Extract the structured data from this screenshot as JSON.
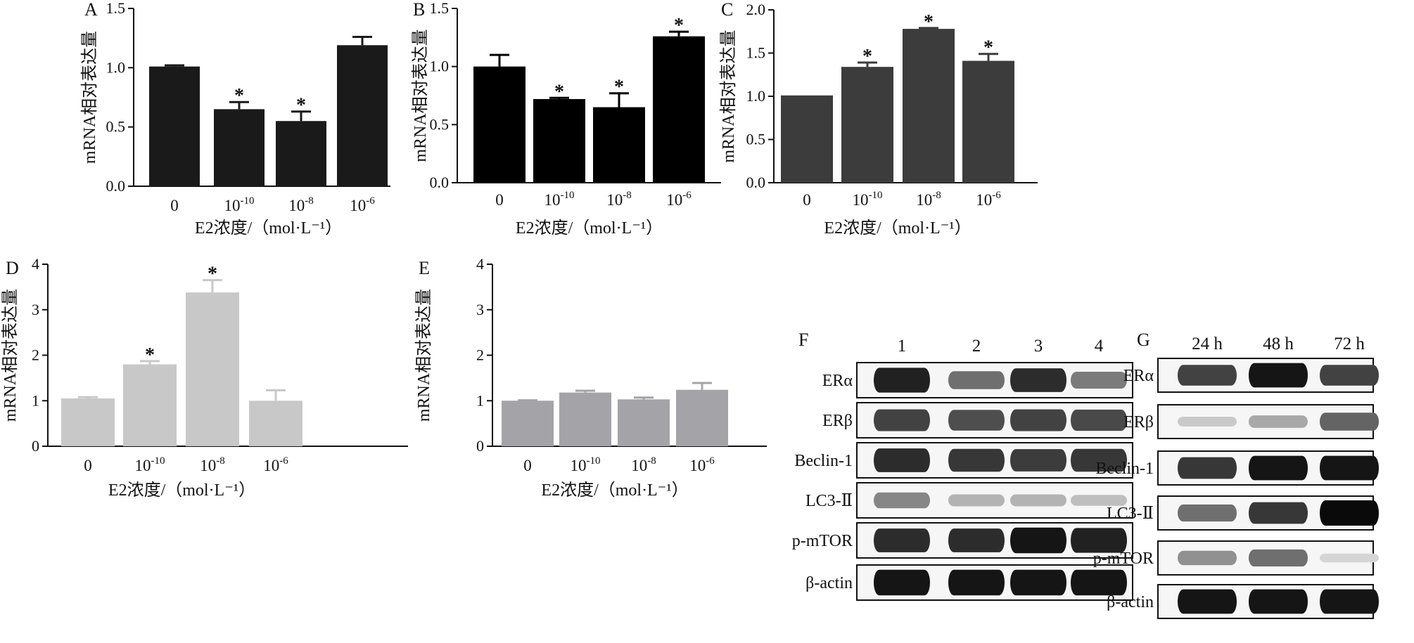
{
  "chart_data": [
    {
      "panel": "A",
      "type": "bar",
      "categories": [
        "0",
        "10^-10",
        "10^-8",
        "10^-6"
      ],
      "values": [
        1.01,
        0.65,
        0.55,
        1.19
      ],
      "errors": [
        0.01,
        0.06,
        0.08,
        0.07
      ],
      "significant": [
        false,
        true,
        true,
        false
      ],
      "yticks": [
        "0.0",
        "0.5",
        "1.0",
        "1.5"
      ],
      "ylim": [
        0,
        1.5
      ],
      "ylabel": "mRNA相对表达量",
      "xlabel": "E2浓度/（mol·L⁻¹）",
      "color": "#1a1a1a"
    },
    {
      "panel": "B",
      "type": "bar",
      "categories": [
        "0",
        "10^-10",
        "10^-8",
        "10^-6"
      ],
      "values": [
        1.0,
        0.72,
        0.65,
        1.26
      ],
      "errors": [
        0.1,
        0.01,
        0.12,
        0.04
      ],
      "significant": [
        false,
        true,
        true,
        true
      ],
      "yticks": [
        "0.0",
        "0.5",
        "1.0",
        "1.5"
      ],
      "ylim": [
        0,
        1.5
      ],
      "ylabel": "mRNA相对表达量",
      "xlabel": "E2浓度/（mol·L⁻¹）",
      "color": "#000000"
    },
    {
      "panel": "C",
      "type": "bar",
      "categories": [
        "0",
        "10^-10",
        "10^-8",
        "10^-6"
      ],
      "values": [
        1.01,
        1.34,
        1.78,
        1.41
      ],
      "errors": [
        0.0,
        0.05,
        0.01,
        0.08
      ],
      "significant": [
        false,
        true,
        true,
        true
      ],
      "yticks": [
        "0.0",
        "0.5",
        "1.0",
        "1.5",
        "2.0"
      ],
      "ylim": [
        0,
        2.0
      ],
      "ylabel": "mRNA相对表达量",
      "xlabel": "E2浓度/（mol·L⁻¹）",
      "color": "#3c3c3c"
    },
    {
      "panel": "D",
      "type": "bar",
      "categories": [
        "0",
        "10^-10",
        "10^-8",
        "10^-6"
      ],
      "values": [
        1.05,
        1.8,
        3.38,
        1.0
      ],
      "errors": [
        0.03,
        0.07,
        0.27,
        0.23
      ],
      "significant": [
        false,
        true,
        true,
        false
      ],
      "yticks": [
        "0",
        "1",
        "2",
        "3",
        "4"
      ],
      "ylim": [
        0,
        4
      ],
      "ylabel": "mRNA相对表达量",
      "xlabel": "E2浓度/（mol·L⁻¹）",
      "color": "#c8c8c8"
    },
    {
      "panel": "E",
      "type": "bar",
      "categories": [
        "0",
        "10^-10",
        "10^-8",
        "10^-6"
      ],
      "values": [
        1.0,
        1.18,
        1.03,
        1.24
      ],
      "errors": [
        0.01,
        0.04,
        0.04,
        0.15
      ],
      "significant": [
        false,
        false,
        false,
        false
      ],
      "yticks": [
        "0",
        "1",
        "2",
        "3",
        "4"
      ],
      "ylim": [
        0,
        4
      ],
      "ylabel": "mRNA相对表达量",
      "xlabel": "E2浓度/（mol·L⁻¹）",
      "color": "#a4a4a8"
    }
  ],
  "star": "*",
  "blots": {
    "F": {
      "label": "F",
      "lanes": [
        "1",
        "2",
        "3",
        "4"
      ],
      "rows": [
        {
          "label": "ERα",
          "intensity": [
            0.9,
            0.55,
            0.85,
            0.5
          ]
        },
        {
          "label": "ERβ",
          "intensity": [
            0.75,
            0.7,
            0.75,
            0.72
          ]
        },
        {
          "label": "Beclin-1",
          "intensity": [
            0.85,
            0.8,
            0.78,
            0.8
          ]
        },
        {
          "label": "LC3-Ⅱ",
          "intensity": [
            0.45,
            0.25,
            0.25,
            0.2
          ]
        },
        {
          "label": "p-mTOR",
          "intensity": [
            0.85,
            0.85,
            0.95,
            0.9
          ]
        },
        {
          "label": "β-actin",
          "intensity": [
            0.95,
            0.95,
            0.95,
            0.95
          ]
        }
      ]
    },
    "G": {
      "label": "G",
      "lanes": [
        "24 h",
        "48 h",
        "72 h"
      ],
      "rows": [
        {
          "label": "ERα",
          "intensity": [
            0.75,
            0.95,
            0.75
          ]
        },
        {
          "label": "ERβ",
          "intensity": [
            0.15,
            0.3,
            0.6
          ]
        },
        {
          "label": "Beclin-1",
          "intensity": [
            0.8,
            0.95,
            0.95
          ]
        },
        {
          "label": "LC3-Ⅱ",
          "intensity": [
            0.55,
            0.8,
            1.0
          ]
        },
        {
          "label": "p-mTOR",
          "intensity": [
            0.4,
            0.55,
            0.1
          ]
        },
        {
          "label": "β-actin",
          "intensity": [
            0.95,
            0.95,
            0.95
          ]
        }
      ]
    }
  }
}
